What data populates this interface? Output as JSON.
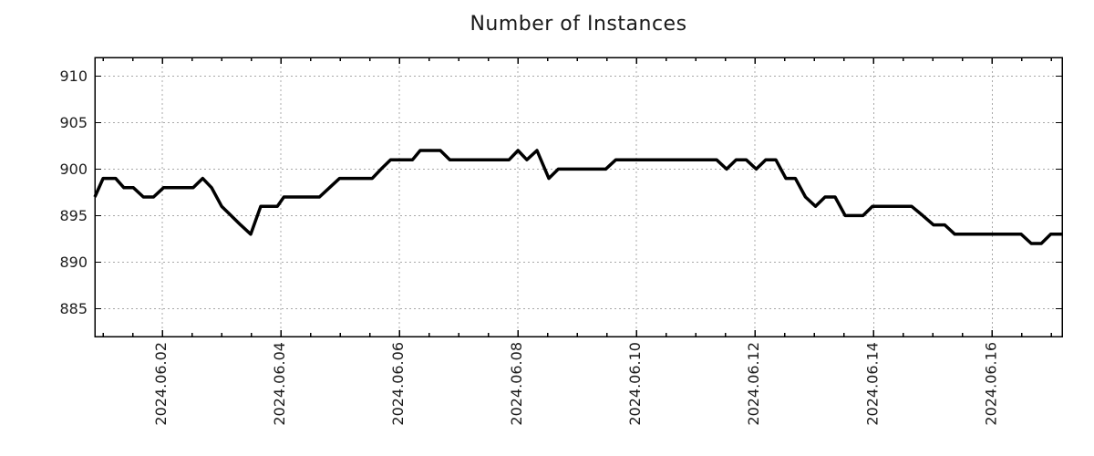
{
  "chart_data": {
    "type": "line",
    "title": "Number of Instances",
    "xlabel": "",
    "ylabel": "",
    "grid": true,
    "legend": "none",
    "line_color": "#000000",
    "line_width": 3.5,
    "grid_color": "#a8a8a8",
    "axis_color": "#000000",
    "background": "#ffffff",
    "x_axis": {
      "unit": "decimal day of June 2024",
      "min": 0.86,
      "max": 17.18,
      "major_ticks": [
        {
          "day": 2,
          "label": "2024.06.02"
        },
        {
          "day": 4,
          "label": "2024.06.04"
        },
        {
          "day": 6,
          "label": "2024.06.06"
        },
        {
          "day": 8,
          "label": "2024.06.08"
        },
        {
          "day": 10,
          "label": "2024.06.10"
        },
        {
          "day": 12,
          "label": "2024.06.12"
        },
        {
          "day": 14,
          "label": "2024.06.14"
        },
        {
          "day": 16,
          "label": "2024.06.16"
        }
      ],
      "minor_tick_step_days": 0.5,
      "minor_tick_start": 1.0,
      "minor_tick_end": 17.0
    },
    "y_axis": {
      "min": 882,
      "max": 912,
      "ticks": [
        885,
        890,
        895,
        900,
        905,
        910
      ]
    },
    "points": [
      [
        0.86,
        897
      ],
      [
        1.0,
        899
      ],
      [
        1.21,
        899
      ],
      [
        1.35,
        898
      ],
      [
        1.51,
        898
      ],
      [
        1.68,
        897
      ],
      [
        1.85,
        897
      ],
      [
        2.02,
        898
      ],
      [
        2.52,
        898
      ],
      [
        2.68,
        899
      ],
      [
        2.83,
        898
      ],
      [
        3.0,
        896
      ],
      [
        3.16,
        895
      ],
      [
        3.32,
        894
      ],
      [
        3.49,
        893
      ],
      [
        3.66,
        896
      ],
      [
        3.94,
        896
      ],
      [
        4.05,
        897
      ],
      [
        4.65,
        897
      ],
      [
        4.82,
        898
      ],
      [
        4.99,
        899
      ],
      [
        5.54,
        899
      ],
      [
        5.69,
        900
      ],
      [
        5.85,
        901
      ],
      [
        6.22,
        901
      ],
      [
        6.35,
        902
      ],
      [
        6.69,
        902
      ],
      [
        6.85,
        901
      ],
      [
        7.85,
        901
      ],
      [
        8.0,
        902
      ],
      [
        8.15,
        901
      ],
      [
        8.32,
        902
      ],
      [
        8.52,
        899
      ],
      [
        8.68,
        900
      ],
      [
        9.48,
        900
      ],
      [
        9.65,
        901
      ],
      [
        11.35,
        901
      ],
      [
        11.52,
        900
      ],
      [
        11.68,
        901
      ],
      [
        11.85,
        901
      ],
      [
        12.02,
        900
      ],
      [
        12.18,
        901
      ],
      [
        12.35,
        901
      ],
      [
        12.52,
        899
      ],
      [
        12.68,
        899
      ],
      [
        12.85,
        897
      ],
      [
        13.02,
        896
      ],
      [
        13.18,
        897
      ],
      [
        13.35,
        897
      ],
      [
        13.52,
        895
      ],
      [
        13.82,
        895
      ],
      [
        13.98,
        896
      ],
      [
        14.64,
        896
      ],
      [
        14.83,
        895
      ],
      [
        15.01,
        894
      ],
      [
        15.2,
        894
      ],
      [
        15.37,
        893
      ],
      [
        16.49,
        893
      ],
      [
        16.66,
        892
      ],
      [
        16.83,
        892
      ],
      [
        16.99,
        893
      ],
      [
        17.18,
        893
      ]
    ]
  }
}
